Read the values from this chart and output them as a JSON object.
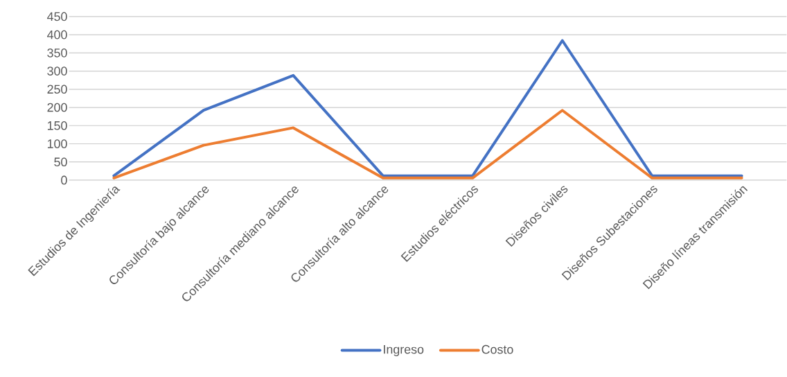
{
  "chart_data": {
    "type": "line",
    "categories": [
      "Estudios de Ingeniería",
      "Consultoría bajo alcance",
      "Consultoría mediano alcance",
      "Consultoría alto alcance",
      "Estudios eléctricos",
      "Diseños civiles",
      "Diseños Subestaciones",
      "Diseño líneas transmisión"
    ],
    "series": [
      {
        "name": "Ingreso",
        "color": "#4472c4",
        "values": [
          12,
          192,
          288,
          12,
          12,
          384,
          12,
          12
        ]
      },
      {
        "name": "Costo",
        "color": "#ed7d31",
        "values": [
          6,
          96,
          144,
          6,
          6,
          192,
          6,
          6
        ]
      }
    ],
    "ylim": [
      0,
      450
    ],
    "yticks": [
      0,
      50,
      100,
      150,
      200,
      250,
      300,
      350,
      400,
      450
    ],
    "grid": "y",
    "legend": "bottom",
    "marker": "none",
    "line_style": "solid"
  }
}
